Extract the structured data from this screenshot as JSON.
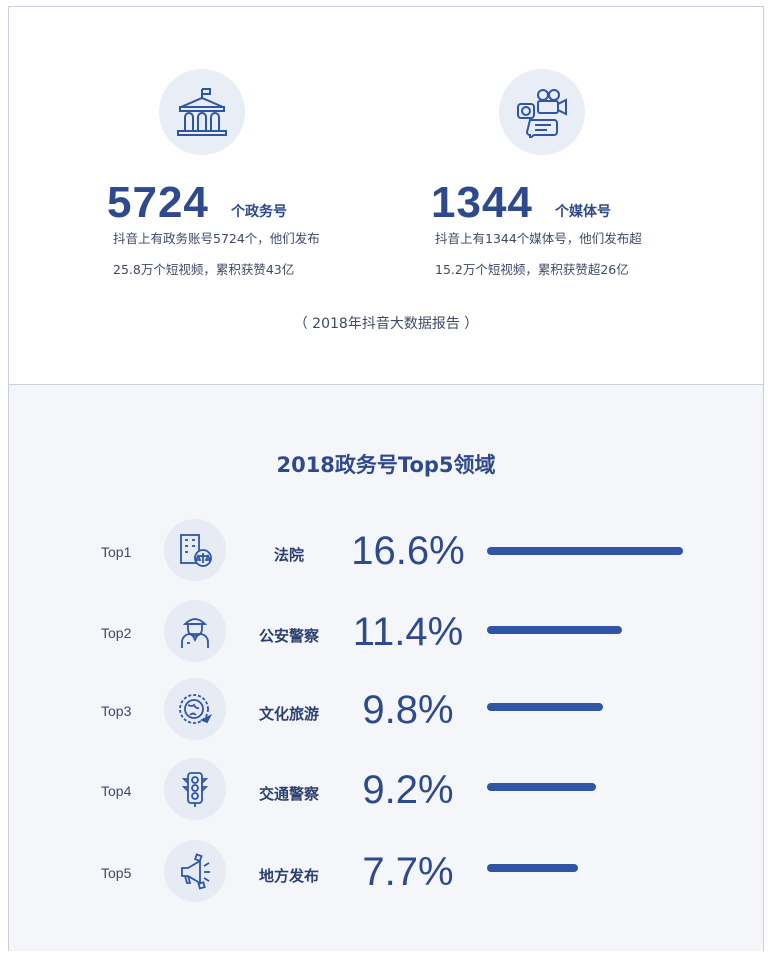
{
  "stats": [
    {
      "number": "5724",
      "unit": "个政务号",
      "icon": "government-building-icon",
      "desc_line1": "抖音上有政务账号5724个，他们发布",
      "desc_line2": "25.8万个短视频，累积获赞43亿"
    },
    {
      "number": "1344",
      "unit": "个媒体号",
      "icon": "media-camera-icon",
      "desc_line1": "抖音上有1344个媒体号，他们发布超",
      "desc_line2": "15.2万个短视频，累积获赞超26亿"
    }
  ],
  "source": "（ 2018年抖音大数据报告 ）",
  "colors": {
    "accent": "#2f4a8c",
    "bar": "#2f55a4",
    "circle_bg": "#e8edf6",
    "bottom_bg": "#f4f6fa"
  },
  "chart_data": {
    "type": "bar",
    "orientation": "horizontal",
    "title": "2018政务号Top5领域",
    "ranks": [
      "Top1",
      "Top2",
      "Top3",
      "Top4",
      "Top5"
    ],
    "categories": [
      "法院",
      "公安警察",
      "文化旅游",
      "交通警察",
      "地方发布"
    ],
    "values": [
      16.6,
      11.4,
      9.8,
      9.2,
      7.7
    ],
    "labels": [
      "16.6%",
      "11.4%",
      "9.8%",
      "9.2%",
      "7.7%"
    ],
    "icons": [
      "court-building-icon",
      "police-officer-icon",
      "globe-travel-icon",
      "traffic-light-icon",
      "megaphone-icon"
    ],
    "unit": "%"
  }
}
